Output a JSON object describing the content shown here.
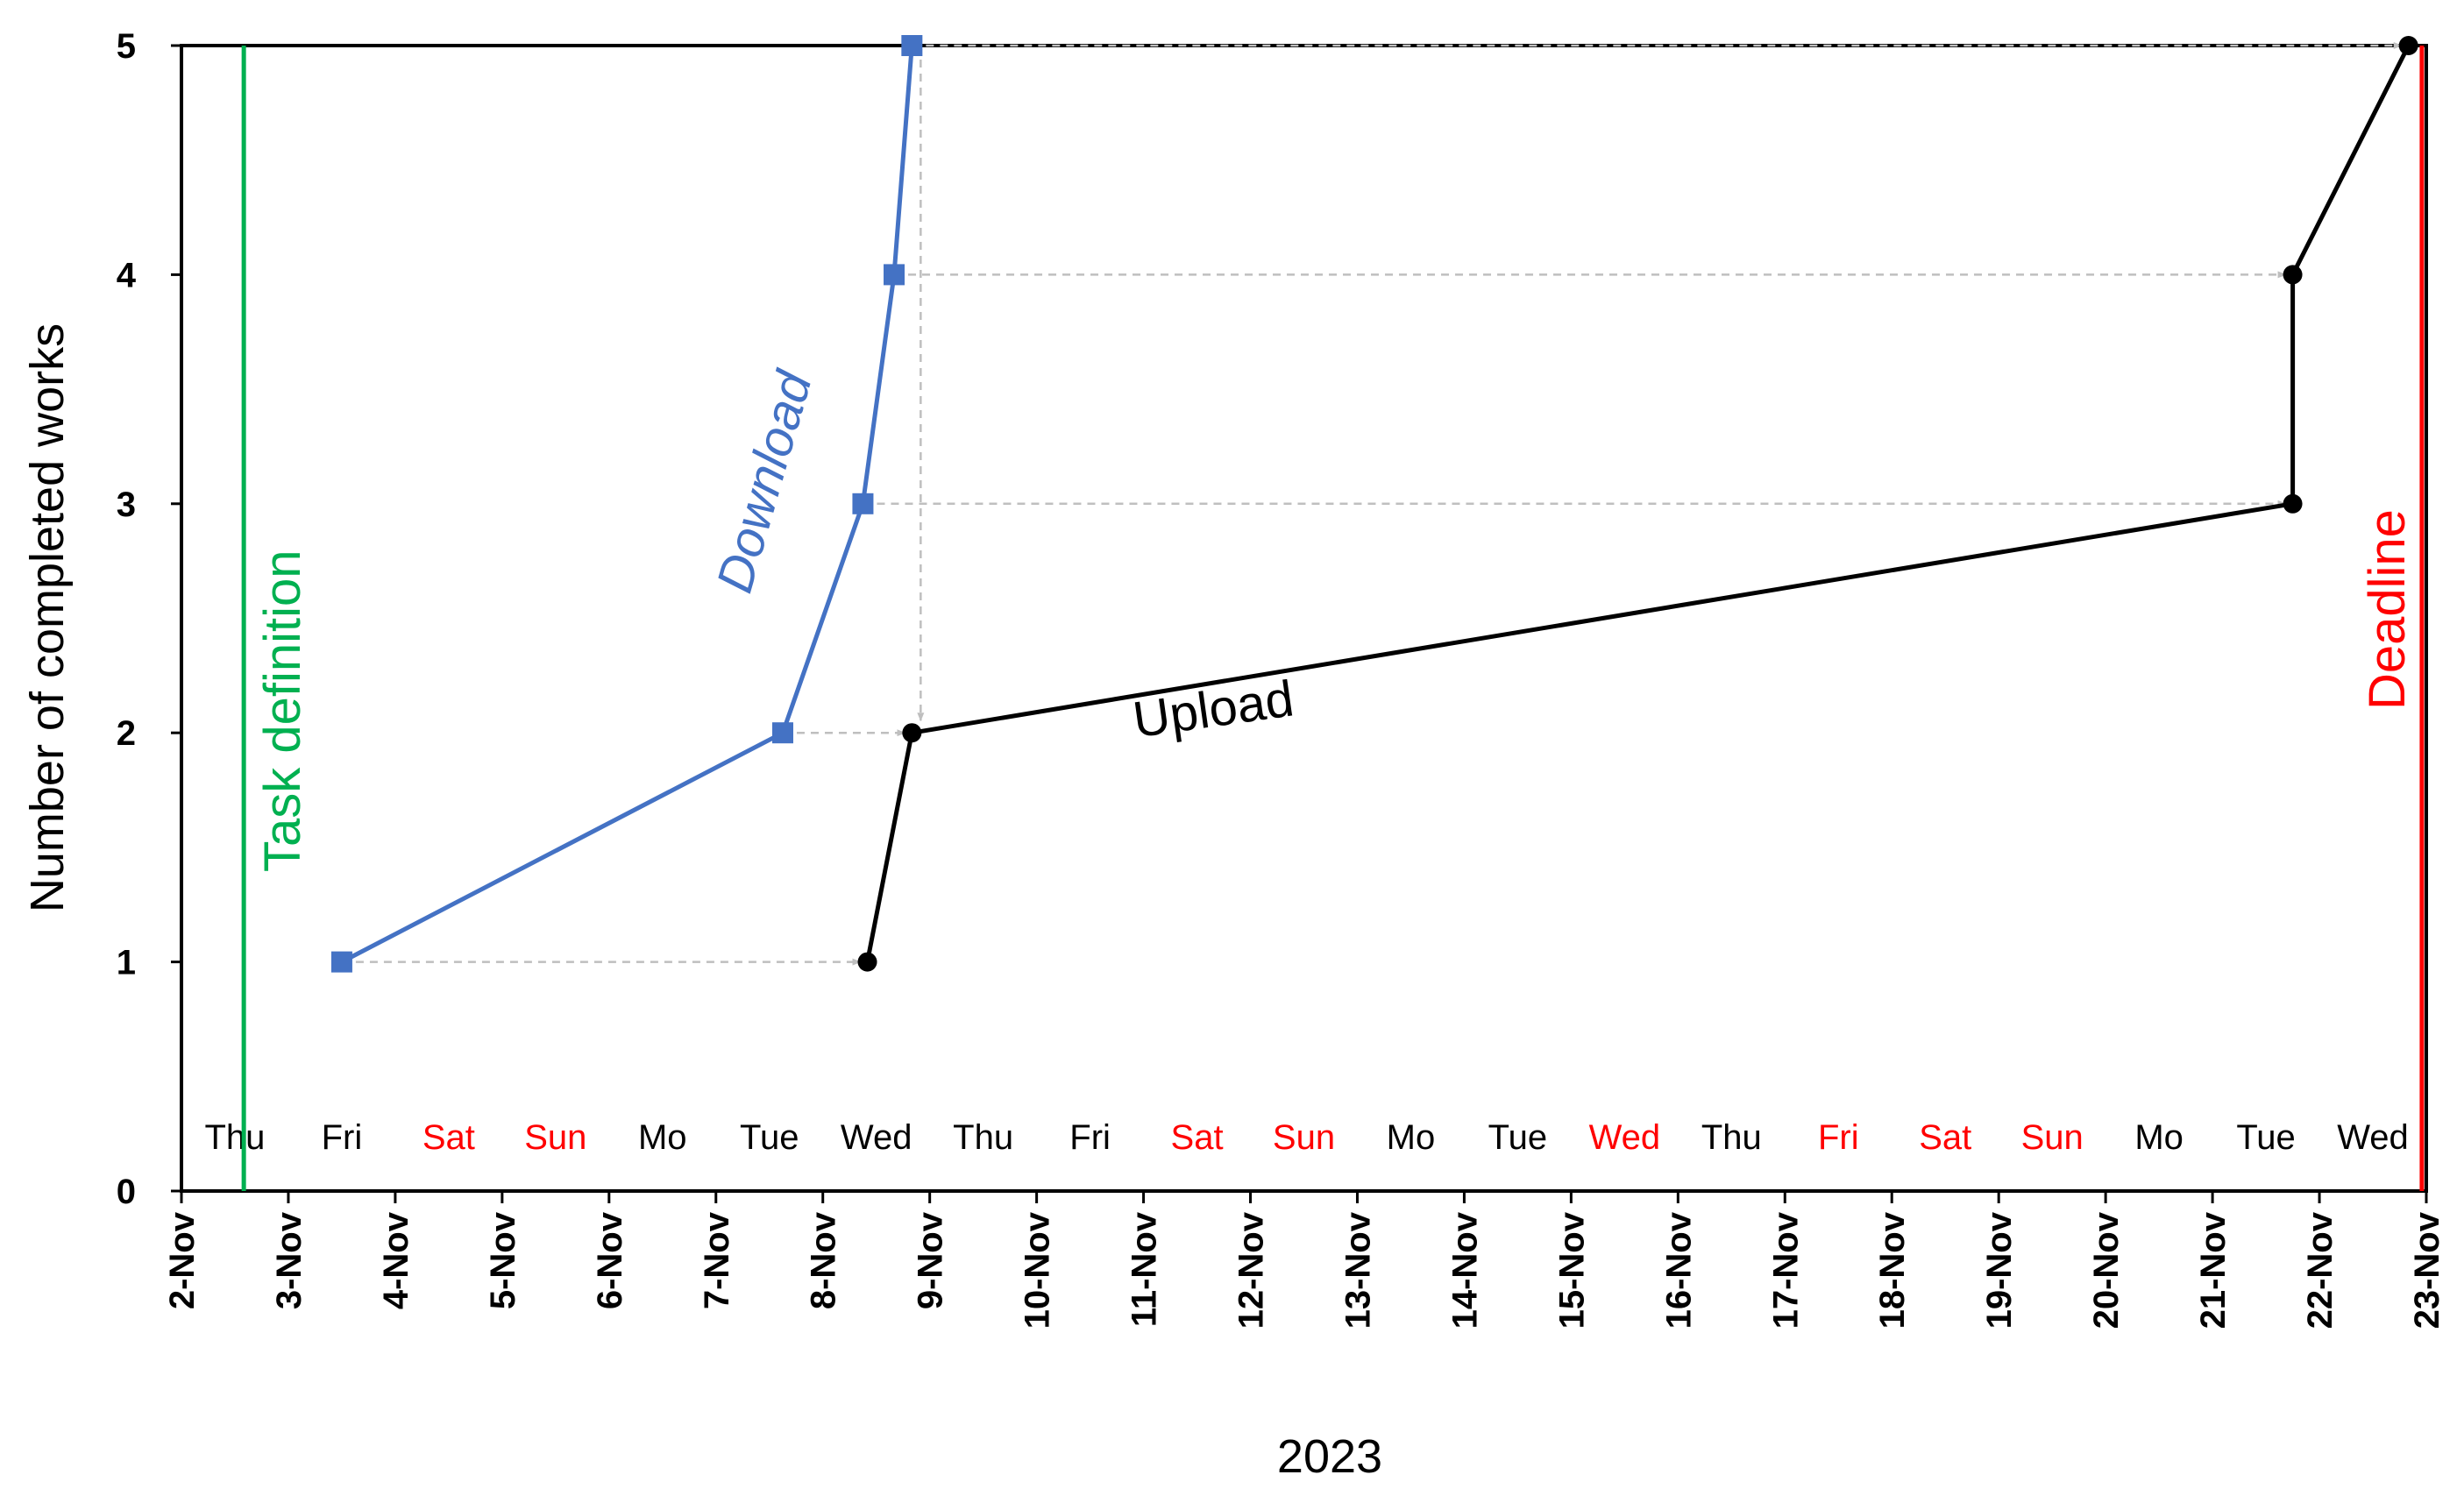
{
  "chart_data": {
    "type": "line",
    "xlabel": "2023",
    "ylabel": "Number of completed works",
    "ylim": [
      0,
      5
    ],
    "yticks": [
      "0",
      "1",
      "2",
      "3",
      "4",
      "5"
    ],
    "xlim": [
      "2-Nov",
      "23-Nov"
    ],
    "xticks": [
      "2-Nov",
      "3-Nov",
      "4-Nov",
      "5-Nov",
      "6-Nov",
      "7-Nov",
      "8-Nov",
      "9-Nov",
      "10-Nov",
      "11-Nov",
      "12-Nov",
      "13-Nov",
      "14-Nov",
      "15-Nov",
      "16-Nov",
      "17-Nov",
      "18-Nov",
      "19-Nov",
      "20-Nov",
      "21-Nov",
      "22-Nov",
      "23-Nov"
    ],
    "weekdays": [
      {
        "label": "Thu",
        "date": "2-Nov",
        "color": "#000000"
      },
      {
        "label": "Fri",
        "date": "3-Nov",
        "color": "#000000"
      },
      {
        "label": "Sat",
        "date": "4-Nov",
        "color": "#ff0000"
      },
      {
        "label": "Sun",
        "date": "5-Nov",
        "color": "#ff0000"
      },
      {
        "label": "Mo",
        "date": "6-Nov",
        "color": "#000000"
      },
      {
        "label": "Tue",
        "date": "7-Nov",
        "color": "#000000"
      },
      {
        "label": "Wed",
        "date": "8-Nov",
        "color": "#000000"
      },
      {
        "label": "Thu",
        "date": "9-Nov",
        "color": "#000000"
      },
      {
        "label": "Fri",
        "date": "10-Nov",
        "color": "#000000"
      },
      {
        "label": "Sat",
        "date": "11-Nov",
        "color": "#ff0000"
      },
      {
        "label": "Sun",
        "date": "12-Nov",
        "color": "#ff0000"
      },
      {
        "label": "Mo",
        "date": "13-Nov",
        "color": "#000000"
      },
      {
        "label": "Tue",
        "date": "14-Nov",
        "color": "#000000"
      },
      {
        "label": "Wed",
        "date": "15-Nov",
        "color": "#ff0000"
      },
      {
        "label": "Thu",
        "date": "16-Nov",
        "color": "#000000"
      },
      {
        "label": "Fri",
        "date": "17-Nov",
        "color": "#ff0000"
      },
      {
        "label": "Sat",
        "date": "18-Nov",
        "color": "#ff0000"
      },
      {
        "label": "Sun",
        "date": "19-Nov",
        "color": "#ff0000"
      },
      {
        "label": "Mo",
        "date": "20-Nov",
        "color": "#000000"
      },
      {
        "label": "Tue",
        "date": "21-Nov",
        "color": "#000000"
      },
      {
        "label": "Wed",
        "date": "22-Nov",
        "color": "#000000"
      }
    ],
    "series": [
      {
        "name": "Download",
        "color": "#4472c4",
        "marker": "square",
        "points": [
          {
            "date": "3-Nov 12:00",
            "y": 1
          },
          {
            "date": "7-Nov 15:00",
            "y": 2
          },
          {
            "date": "8-Nov 09:00",
            "y": 3
          },
          {
            "date": "8-Nov 16:00",
            "y": 4
          },
          {
            "date": "8-Nov 20:00",
            "y": 5
          }
        ]
      },
      {
        "name": "Upload",
        "color": "#000000",
        "marker": "circle",
        "points": [
          {
            "date": "8-Nov 10:00",
            "y": 1
          },
          {
            "date": "8-Nov 20:00",
            "y": 2
          },
          {
            "date": "21-Nov 18:00",
            "y": 3
          },
          {
            "date": "21-Nov 18:00",
            "y": 4
          },
          {
            "date": "22-Nov 20:00",
            "y": 5
          }
        ]
      }
    ],
    "vertical_lines": [
      {
        "label": "Task definition",
        "date": "2-Nov 14:00",
        "color": "#00b050"
      },
      {
        "label": "Deadline",
        "date": "22-Nov 23:00",
        "color": "#ff0000"
      }
    ],
    "arrow_color": "#bfbfbf",
    "grid": false
  }
}
